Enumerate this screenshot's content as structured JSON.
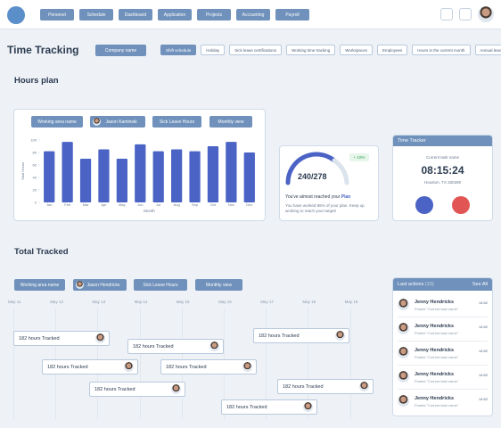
{
  "nav": {
    "items": [
      "Personel",
      "Schedule",
      "Dashboard",
      "Application",
      "Projects",
      "Accounting",
      "Payroll"
    ]
  },
  "header": {
    "title": "Time Tracking",
    "company": "Company name",
    "tabs": [
      "Shift schedule",
      "Holiday",
      "Sick leave certifications",
      "Working time tracking",
      "Workspaces",
      "Employees",
      "Hours in the current month",
      "Annual leave"
    ]
  },
  "hours_plan": {
    "title": "Hours plan",
    "filters": [
      "Working area name",
      "Jason Kaminski",
      "Sick Leave Hours",
      "Monthly view"
    ]
  },
  "chart_data": {
    "type": "bar",
    "x_label": "Month",
    "y_label": "Total Hours",
    "categories": [
      "Jan",
      "Feb",
      "Mar",
      "Apr",
      "May",
      "Jun",
      "Jul",
      "Aug",
      "Sep",
      "Oct",
      "Nov",
      "Dec"
    ],
    "values": [
      82,
      97,
      70,
      85,
      70,
      93,
      82,
      85,
      82,
      90,
      97,
      80
    ],
    "color": "#4a63c4",
    "ylim": [
      0,
      100
    ],
    "yticks": [
      0,
      20,
      40,
      60,
      80,
      100
    ]
  },
  "plan_card": {
    "badge": "+ 10%",
    "value": "240/278",
    "text": "You've almost reached your",
    "highlight": "Plan",
    "sub": "You have worked 86% of your plan. Keep up working to reach your target!"
  },
  "tracker": {
    "title": "Time Tracker",
    "task": "Current task name",
    "time": "08:15:24",
    "location": "Houston, TX 330280"
  },
  "total_tracked": {
    "title": "Total Tracked",
    "filters": [
      "Working area name",
      "Jason Hendricks",
      "Sick Leave Hours",
      "Monthly view"
    ],
    "dates": [
      "May 11",
      "May 12",
      "May 13",
      "May 14",
      "May 15",
      "May 16",
      "May 17",
      "May 18",
      "May 19"
    ],
    "entries": [
      "182 hours Tracked",
      "182 hours Tracked",
      "182 hours Tracked",
      "182 hours Tracked",
      "182 hours Tracked",
      "182 hours Tracked",
      "182 hours Tracked",
      "182 hours Tracked"
    ]
  },
  "last_actions": {
    "title": "Last actions",
    "count": "(10)",
    "see_all": "See All",
    "items": [
      {
        "name": "Jenny Hendricks",
        "action": "Posted \"Current task name\"",
        "time": "14:52"
      },
      {
        "name": "Jenny Hendricks",
        "action": "Posted \"Current task name\"",
        "time": "14:52"
      },
      {
        "name": "Jenny Hendricks",
        "action": "Posted \"Current task name\"",
        "time": "14:52"
      },
      {
        "name": "Jenny Hendricks",
        "action": "Posted \"Current task name\"",
        "time": "14:52"
      },
      {
        "name": "Jenny Hendricks",
        "action": "Posted \"Current task name\"",
        "time": "14:52"
      }
    ]
  }
}
